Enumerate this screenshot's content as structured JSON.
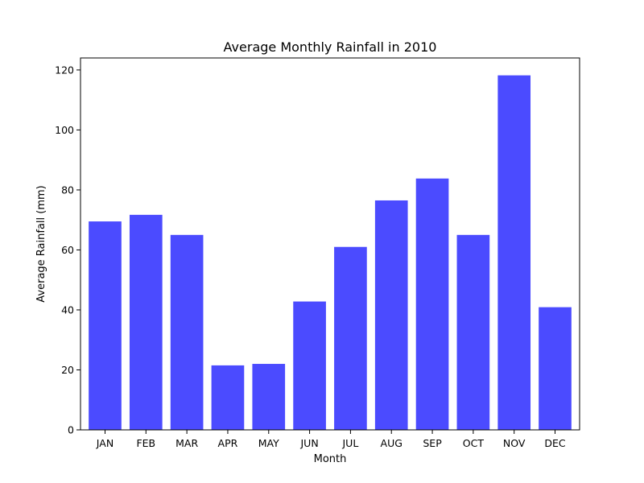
{
  "chart_data": {
    "type": "bar",
    "title": "Average Monthly Rainfall in 2010",
    "xlabel": "Month",
    "ylabel": "Average Rainfall (mm)",
    "categories": [
      "JAN",
      "FEB",
      "MAR",
      "APR",
      "MAY",
      "JUN",
      "JUL",
      "AUG",
      "SEP",
      "OCT",
      "NOV",
      "DEC"
    ],
    "values": [
      69.5,
      71.7,
      65.0,
      21.5,
      22.0,
      42.8,
      61.0,
      76.5,
      83.8,
      65.0,
      118.2,
      40.9
    ],
    "ylim": [
      0,
      124
    ],
    "yticks": [
      0,
      20,
      40,
      60,
      80,
      100,
      120
    ],
    "bar_color": "#4b4bff",
    "grid": false,
    "legend": false
  }
}
